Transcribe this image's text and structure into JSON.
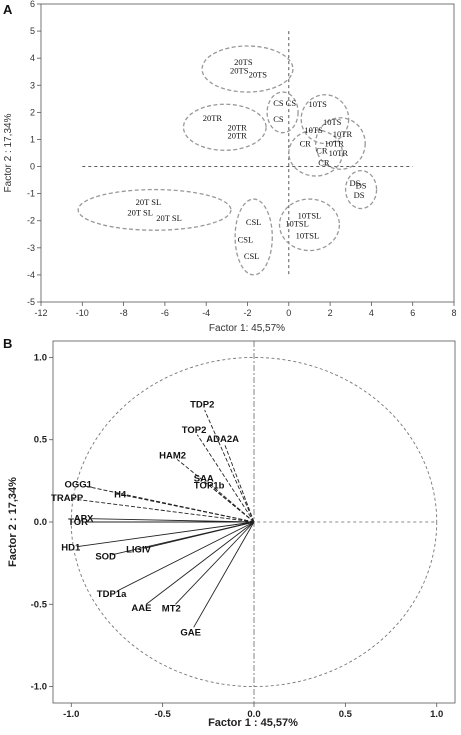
{
  "chart_data": [
    {
      "type": "scatter",
      "panel": "A",
      "xlabel": "Factor 1: 45,57%",
      "ylabel": "Factor 2 : 17,34%",
      "xlim": [
        -12,
        8
      ],
      "ylim": [
        -5,
        6
      ],
      "xticks": [
        -12,
        -10,
        -8,
        -6,
        -4,
        -2,
        0,
        2,
        4,
        6,
        8
      ],
      "yticks": [
        -5,
        -4,
        -3,
        -2,
        -1,
        0,
        1,
        2,
        3,
        4,
        5,
        6
      ],
      "reference_lines": {
        "x": 0,
        "y": 0,
        "x_span": [
          -10,
          6
        ],
        "y_span": [
          -4,
          5
        ]
      },
      "points": [
        {
          "label": "20TS",
          "x": -2.2,
          "y": 3.85
        },
        {
          "label": "20TS",
          "x": -2.4,
          "y": 3.55
        },
        {
          "label": "20TS",
          "x": -1.5,
          "y": 3.4
        },
        {
          "label": "20TR",
          "x": -3.7,
          "y": 1.8
        },
        {
          "label": "20TR",
          "x": -2.5,
          "y": 1.45
        },
        {
          "label": "20TR",
          "x": -2.5,
          "y": 1.15
        },
        {
          "label": "CS",
          "x": -0.5,
          "y": 2.35
        },
        {
          "label": "CS",
          "x": 0.1,
          "y": 2.35
        },
        {
          "label": "CS",
          "x": -0.5,
          "y": 1.75
        },
        {
          "label": "10TS",
          "x": 1.4,
          "y": 2.3
        },
        {
          "label": "10TS",
          "x": 2.1,
          "y": 1.65
        },
        {
          "label": "10TS",
          "x": 1.2,
          "y": 1.35
        },
        {
          "label": "10TR",
          "x": 2.6,
          "y": 1.2
        },
        {
          "label": "10TR",
          "x": 2.2,
          "y": 0.85
        },
        {
          "label": "10TR",
          "x": 2.4,
          "y": 0.5
        },
        {
          "label": "CR",
          "x": 0.8,
          "y": 0.85
        },
        {
          "label": "CR",
          "x": 1.6,
          "y": 0.6
        },
        {
          "label": "CR",
          "x": 1.7,
          "y": 0.15
        },
        {
          "label": "DS",
          "x": 3.5,
          "y": -0.7
        },
        {
          "label": "DS",
          "x": 3.2,
          "y": -0.6
        },
        {
          "label": "DS",
          "x": 3.4,
          "y": -1.05
        },
        {
          "label": "20T SL",
          "x": -6.8,
          "y": -1.3
        },
        {
          "label": "20T SL",
          "x": -7.2,
          "y": -1.7
        },
        {
          "label": "20T SL",
          "x": -5.8,
          "y": -1.9
        },
        {
          "label": "CSL",
          "x": -1.7,
          "y": -2.05
        },
        {
          "label": "CSL",
          "x": -2.1,
          "y": -2.7
        },
        {
          "label": "CSL",
          "x": -1.8,
          "y": -3.3
        },
        {
          "label": "10TSL",
          "x": 1.0,
          "y": -1.8
        },
        {
          "label": "10TSL",
          "x": 0.4,
          "y": -2.1
        },
        {
          "label": "10TSL",
          "x": 0.9,
          "y": -2.55
        }
      ],
      "groups": [
        {
          "cx": -2.0,
          "cy": 3.6,
          "rx": 2.2,
          "ry": 0.85
        },
        {
          "cx": -3.1,
          "cy": 1.45,
          "rx": 2.0,
          "ry": 0.85
        },
        {
          "cx": -0.3,
          "cy": 2.0,
          "rx": 0.75,
          "ry": 0.75
        },
        {
          "cx": 1.75,
          "cy": 1.75,
          "rx": 1.15,
          "ry": 0.9
        },
        {
          "cx": 2.5,
          "cy": 0.85,
          "rx": 1.2,
          "ry": 0.95
        },
        {
          "cx": 1.3,
          "cy": 0.5,
          "rx": 1.3,
          "ry": 0.85
        },
        {
          "cx": 3.5,
          "cy": -0.85,
          "rx": 0.75,
          "ry": 0.7
        },
        {
          "cx": -6.5,
          "cy": -1.6,
          "rx": 3.7,
          "ry": 0.75
        },
        {
          "cx": -1.7,
          "cy": -2.6,
          "rx": 0.9,
          "ry": 1.4
        },
        {
          "cx": 1.0,
          "cy": -2.15,
          "rx": 1.45,
          "ry": 0.95
        }
      ]
    },
    {
      "type": "scatter",
      "panel": "B",
      "subtype": "correlation-circle",
      "xlabel": "Factor 1 : 45,57%",
      "ylabel": "Factor 2 : 17,34%",
      "xlim": [
        -1.1,
        1.1
      ],
      "ylim": [
        -1.1,
        1.1
      ],
      "xticks": [
        -1.0,
        -0.5,
        0.0,
        0.5,
        1.0
      ],
      "yticks": [
        -1.0,
        -0.5,
        0.0,
        0.5,
        1.0
      ],
      "tick_labels": [
        "-1.0",
        "-0.5",
        "0.0",
        "0.5",
        "1.0"
      ],
      "vectors": [
        {
          "label": "TDP2",
          "x": -0.27,
          "y": 0.68,
          "style": "dashed"
        },
        {
          "label": "TOP2",
          "x": -0.31,
          "y": 0.53,
          "style": "dashed"
        },
        {
          "label": "ADA2A",
          "x": -0.16,
          "y": 0.47,
          "style": "dashed"
        },
        {
          "label": "HAM2",
          "x": -0.42,
          "y": 0.38,
          "style": "dashed"
        },
        {
          "label": "SAA",
          "x": -0.25,
          "y": 0.24,
          "style": "dashed"
        },
        {
          "label": "TOP1b",
          "x": -0.22,
          "y": 0.2,
          "style": "dashed"
        },
        {
          "label": "OGG1",
          "x": -0.93,
          "y": 0.22,
          "style": "dashed"
        },
        {
          "label": "H4",
          "x": -0.7,
          "y": 0.16,
          "style": "dashed"
        },
        {
          "label": "TRAPP",
          "x": -0.99,
          "y": 0.14,
          "style": "dashed"
        },
        {
          "label": "APX",
          "x": -0.9,
          "y": 0.02,
          "style": "solid"
        },
        {
          "label": "TOR",
          "x": -0.93,
          "y": 0.0,
          "style": "solid"
        },
        {
          "label": "HD1",
          "x": -0.97,
          "y": -0.15,
          "style": "solid"
        },
        {
          "label": "SOD",
          "x": -0.78,
          "y": -0.2,
          "style": "solid"
        },
        {
          "label": "LIGIV",
          "x": -0.6,
          "y": -0.16,
          "style": "solid"
        },
        {
          "label": "TDP1a",
          "x": -0.75,
          "y": -0.42,
          "style": "solid"
        },
        {
          "label": "AAE",
          "x": -0.59,
          "y": -0.5,
          "style": "solid"
        },
        {
          "label": "MT2",
          "x": -0.43,
          "y": -0.5,
          "style": "solid"
        },
        {
          "label": "GAE",
          "x": -0.33,
          "y": -0.64,
          "style": "solid"
        }
      ]
    }
  ]
}
